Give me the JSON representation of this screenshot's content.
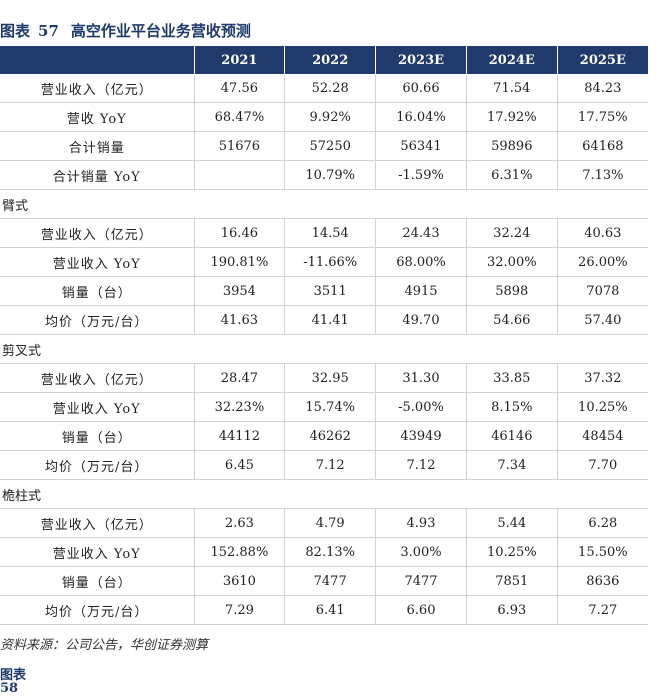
{
  "title": {
    "label": "图表",
    "number": "57",
    "text": "高空作业平台业务营收预测"
  },
  "columns": [
    "",
    "2021",
    "2022",
    "2023E",
    "2024E",
    "2025E"
  ],
  "rows": [
    {
      "kind": "data",
      "label": "营业收入（亿元）",
      "values": [
        "47.56",
        "52.28",
        "60.66",
        "71.54",
        "84.23"
      ]
    },
    {
      "kind": "data",
      "label": "营收 YoY",
      "values": [
        "68.47%",
        "9.92%",
        "16.04%",
        "17.92%",
        "17.75%"
      ]
    },
    {
      "kind": "data",
      "label": "合计销量",
      "values": [
        "51676",
        "57250",
        "56341",
        "59896",
        "64168"
      ]
    },
    {
      "kind": "data",
      "label": "合计销量 YoY",
      "values": [
        "",
        "10.79%",
        "-1.59%",
        "6.31%",
        "7.13%"
      ]
    },
    {
      "kind": "section",
      "label": "臂式"
    },
    {
      "kind": "data",
      "label": "营业收入（亿元）",
      "values": [
        "16.46",
        "14.54",
        "24.43",
        "32.24",
        "40.63"
      ]
    },
    {
      "kind": "data",
      "label": "营业收入 YoY",
      "values": [
        "190.81%",
        "-11.66%",
        "68.00%",
        "32.00%",
        "26.00%"
      ]
    },
    {
      "kind": "data",
      "label": "销量（台）",
      "values": [
        "3954",
        "3511",
        "4915",
        "5898",
        "7078"
      ]
    },
    {
      "kind": "data",
      "label": "均价（万元/台）",
      "values": [
        "41.63",
        "41.41",
        "49.70",
        "54.66",
        "57.40"
      ]
    },
    {
      "kind": "section",
      "label": "剪叉式"
    },
    {
      "kind": "data",
      "label": "营业收入（亿元）",
      "values": [
        "28.47",
        "32.95",
        "31.30",
        "33.85",
        "37.32"
      ]
    },
    {
      "kind": "data",
      "label": "营业收入 YoY",
      "values": [
        "32.23%",
        "15.74%",
        "-5.00%",
        "8.15%",
        "10.25%"
      ]
    },
    {
      "kind": "data",
      "label": "销量（台）",
      "values": [
        "44112",
        "46262",
        "43949",
        "46146",
        "48454"
      ]
    },
    {
      "kind": "data",
      "label": "均价（万元/台）",
      "values": [
        "6.45",
        "7.12",
        "7.12",
        "7.34",
        "7.70"
      ]
    },
    {
      "kind": "section",
      "label": "桅柱式"
    },
    {
      "kind": "data",
      "label": "营业收入（亿元）",
      "values": [
        "2.63",
        "4.79",
        "4.93",
        "5.44",
        "6.28"
      ]
    },
    {
      "kind": "data",
      "label": "营业收入 YoY",
      "values": [
        "152.88%",
        "82.13%",
        "3.00%",
        "10.25%",
        "15.50%"
      ]
    },
    {
      "kind": "data",
      "label": "销量（台）",
      "values": [
        "3610",
        "7477",
        "7477",
        "7851",
        "8636"
      ]
    },
    {
      "kind": "data",
      "label": "均价（万元/台）",
      "values": [
        "7.29",
        "6.41",
        "6.60",
        "6.93",
        "7.27"
      ]
    }
  ],
  "source": "资料来源：公司公告，华创证券测算",
  "next_heading": "图表 58"
}
